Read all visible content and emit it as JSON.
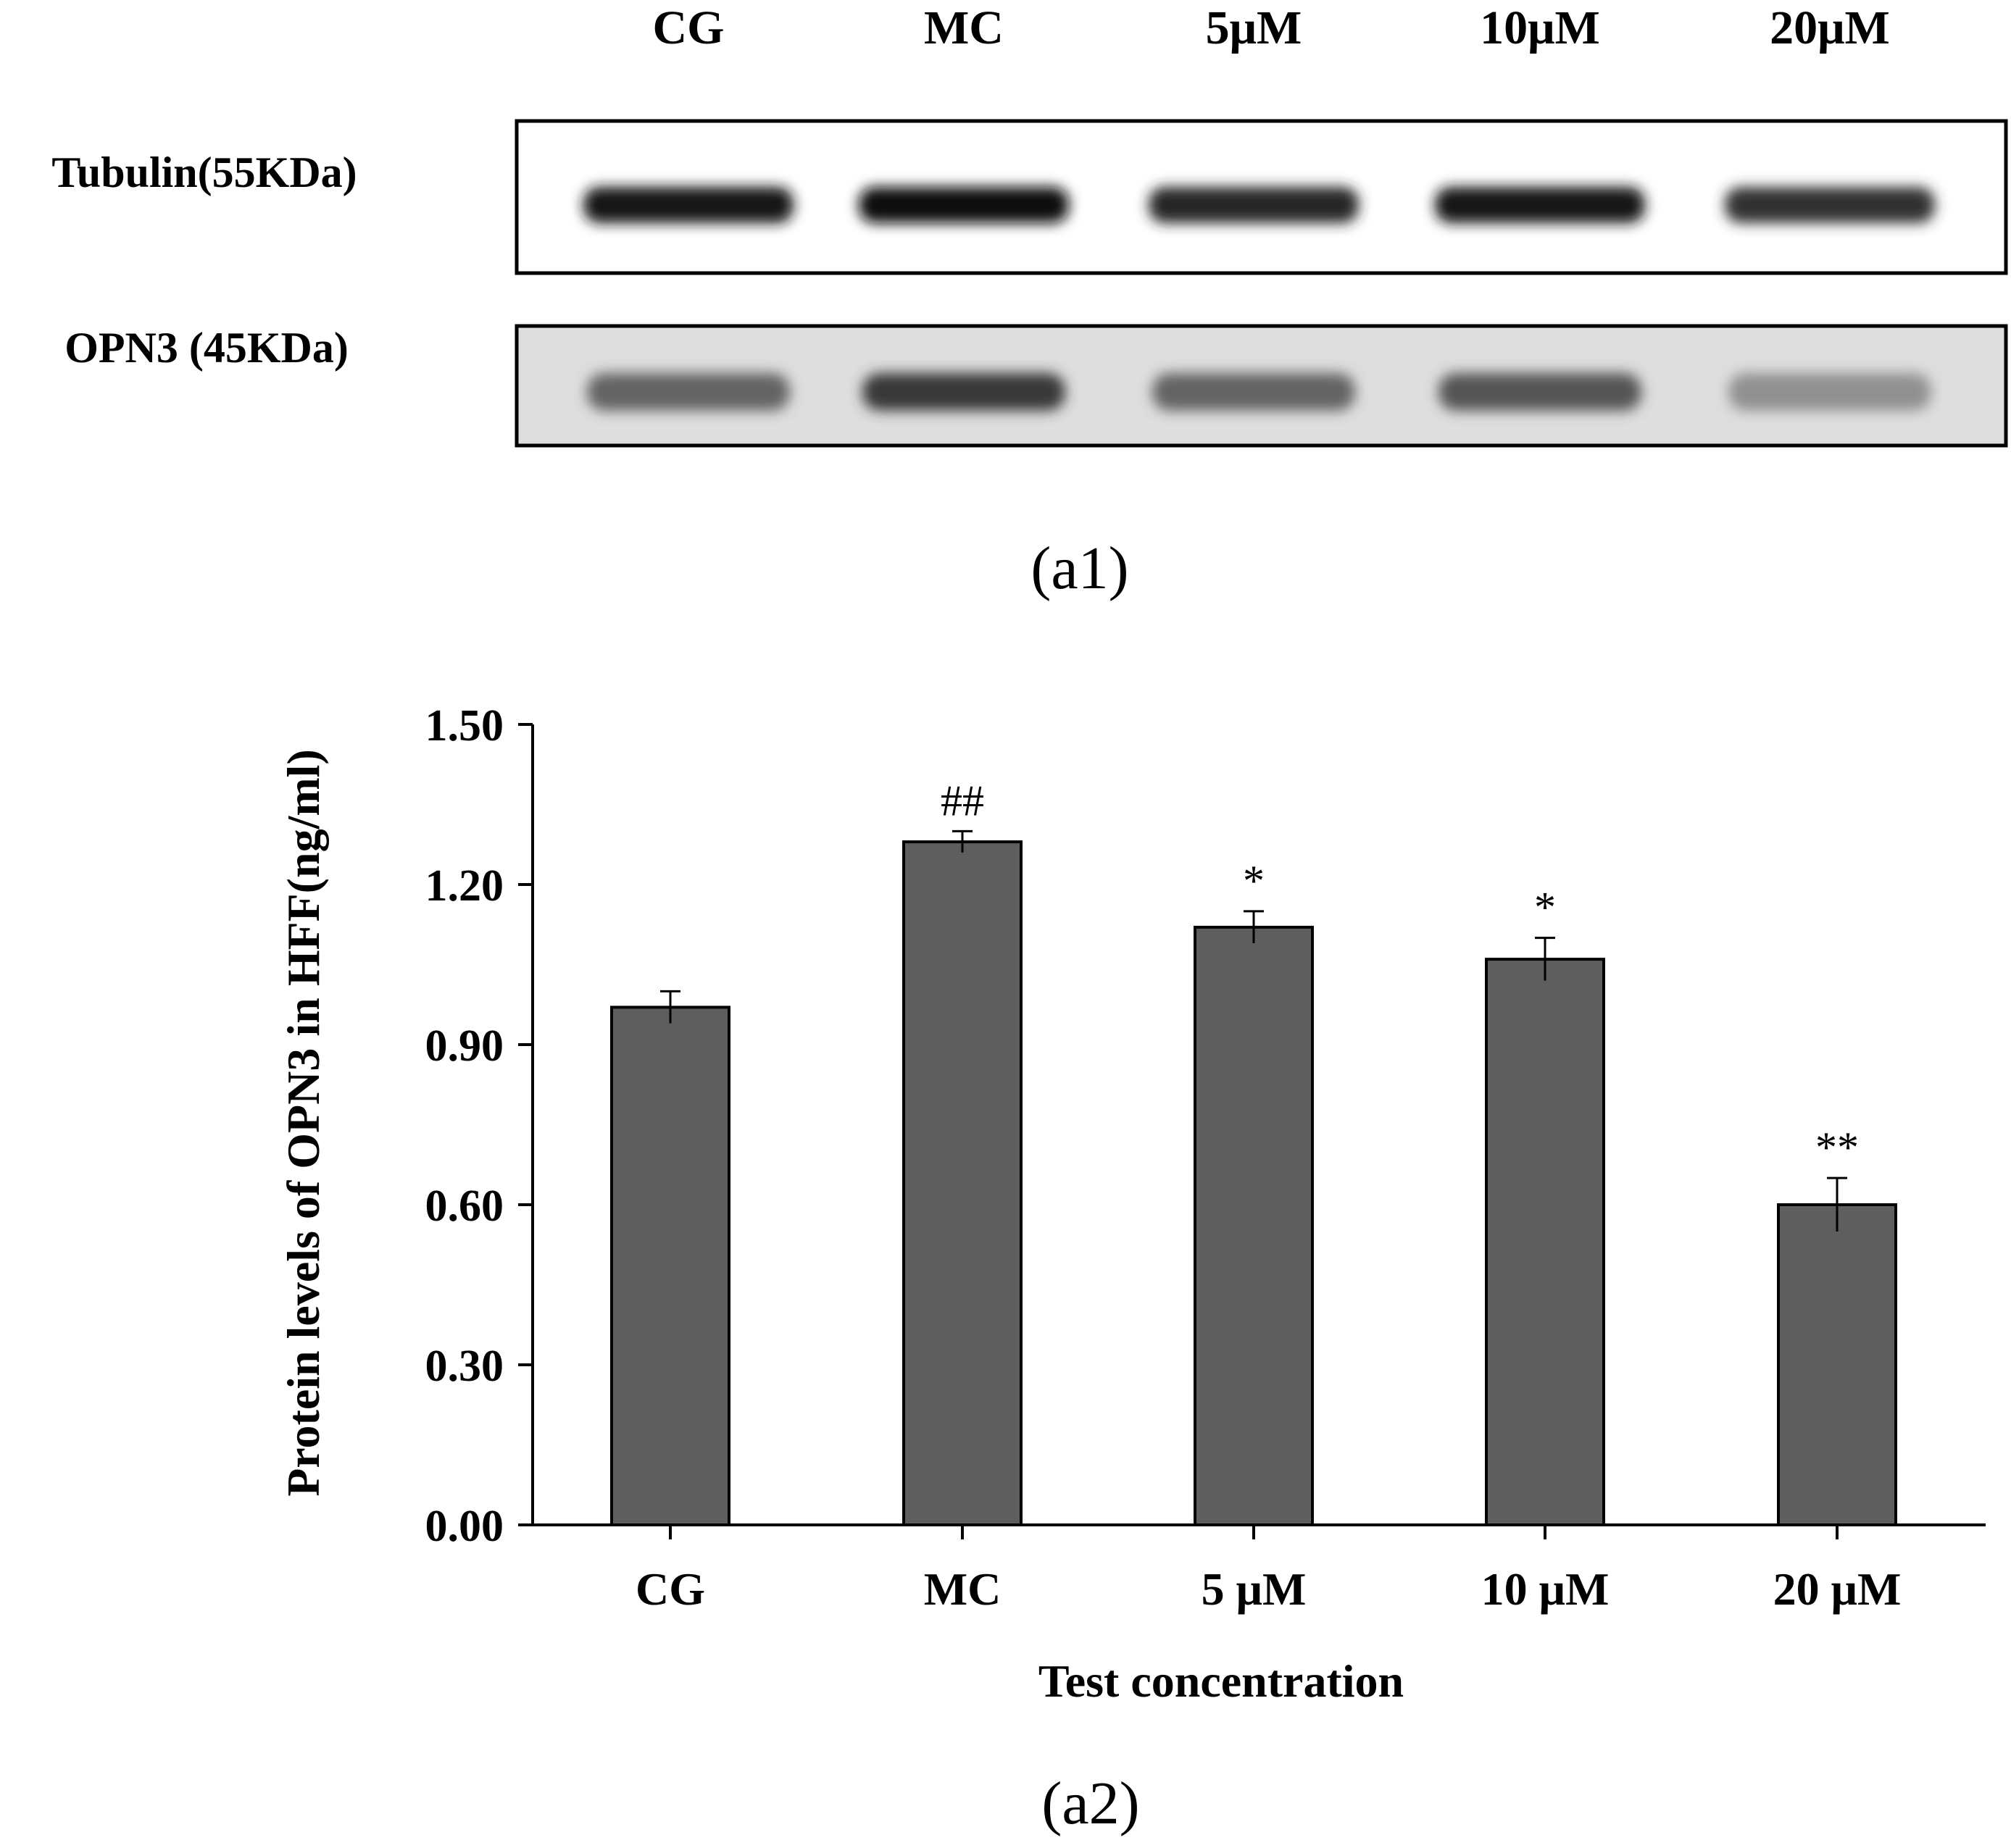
{
  "blot": {
    "lane_labels": [
      "CG",
      "MC",
      "5μM",
      "10μM",
      "20μM"
    ],
    "row_labels": [
      "Tubulin(55KDa)",
      "OPN3 (45KDa)"
    ],
    "tubulin_intensity": [
      0.92,
      0.97,
      0.85,
      0.9,
      0.8
    ],
    "opn3_intensity": [
      0.55,
      0.75,
      0.55,
      0.62,
      0.35
    ],
    "panel_label": "(a1)"
  },
  "chart_data": {
    "type": "bar",
    "categories": [
      "CG",
      "MC",
      "5 μM",
      "10 μM",
      "20 μM"
    ],
    "values": [
      0.97,
      1.28,
      1.12,
      1.06,
      0.6
    ],
    "errors": [
      0.03,
      0.02,
      0.03,
      0.04,
      0.05
    ],
    "annotations": [
      "",
      "##",
      "*",
      "*",
      "**"
    ],
    "xlabel": "Test concentration",
    "ylabel": "Protein levels of OPN3 in HFF(ng/ml)",
    "ylim": [
      0,
      1.5
    ],
    "yticks": [
      "0.00",
      "0.30",
      "0.60",
      "0.90",
      "1.20",
      "1.50"
    ],
    "bar_color": "#5e5e5e",
    "grid": false,
    "panel_label": "(a2)"
  }
}
